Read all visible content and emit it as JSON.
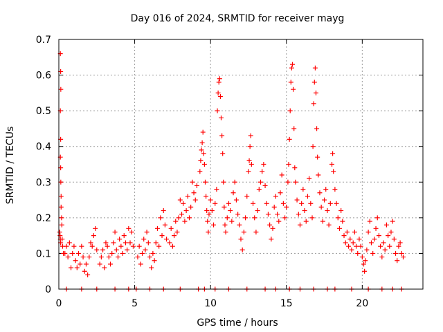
{
  "chart_data": {
    "type": "scatter",
    "title": "Day 016 of 2024, SRMTID for receiver mayg",
    "xlabel": "GPS time / hours",
    "ylabel": "SRMTID / TECUs",
    "xlim": [
      0,
      24
    ],
    "ylim": [
      0,
      0.7
    ],
    "xticks": [
      0,
      5,
      10,
      15,
      20
    ],
    "yticks": [
      0,
      0.1,
      0.2,
      0.3,
      0.4,
      0.5,
      0.6,
      0.7
    ],
    "xtick_labels": [
      "0",
      "5",
      "10",
      "15",
      "20"
    ],
    "ytick_labels": [
      "0",
      "0.1",
      "0.2",
      "0.3",
      "0.4",
      "0.5",
      "0.6",
      "0.7"
    ],
    "grid": true,
    "marker": "+",
    "color": "#ff0000",
    "series": [
      {
        "name": "SRMTID",
        "points": [
          [
            0.05,
            0.16
          ],
          [
            0.08,
            0.15
          ],
          [
            0.1,
            0.14
          ],
          [
            0.12,
            0.13
          ],
          [
            0.1,
            0.66
          ],
          [
            0.12,
            0.61
          ],
          [
            0.13,
            0.56
          ],
          [
            0.1,
            0.5
          ],
          [
            0.12,
            0.42
          ],
          [
            0.1,
            0.37
          ],
          [
            0.12,
            0.34
          ],
          [
            0.13,
            0.3
          ],
          [
            0.15,
            0.26
          ],
          [
            0.15,
            0.23
          ],
          [
            0.18,
            0.2
          ],
          [
            0.2,
            0.18
          ],
          [
            0.22,
            0.14
          ],
          [
            0.25,
            0.12
          ],
          [
            0.3,
            0.1
          ],
          [
            0.4,
            0.1
          ],
          [
            0.5,
            0.12
          ],
          [
            0.6,
            0.09
          ],
          [
            0.7,
            0.13
          ],
          [
            0.8,
            0.06
          ],
          [
            0.9,
            0.1
          ],
          [
            1.0,
            0.12
          ],
          [
            1.1,
            0.08
          ],
          [
            1.2,
            0.06
          ],
          [
            1.3,
            0.1
          ],
          [
            1.4,
            0.07
          ],
          [
            1.5,
            0.12
          ],
          [
            1.6,
            0.09
          ],
          [
            1.7,
            0.05
          ],
          [
            1.8,
            0.07
          ],
          [
            1.9,
            0.04
          ],
          [
            2.0,
            0.09
          ],
          [
            2.1,
            0.13
          ],
          [
            2.2,
            0.12
          ],
          [
            2.3,
            0.15
          ],
          [
            2.4,
            0.17
          ],
          [
            2.5,
            0.11
          ],
          [
            2.7,
            0.07
          ],
          [
            2.8,
            0.09
          ],
          [
            2.9,
            0.11
          ],
          [
            3.0,
            0.06
          ],
          [
            3.1,
            0.13
          ],
          [
            3.2,
            0.12
          ],
          [
            3.3,
            0.09
          ],
          [
            3.4,
            0.07
          ],
          [
            3.5,
            0.1
          ],
          [
            3.6,
            0.13
          ],
          [
            3.7,
            0.16
          ],
          [
            3.8,
            0.11
          ],
          [
            3.9,
            0.09
          ],
          [
            4.0,
            0.14
          ],
          [
            4.1,
            0.12
          ],
          [
            4.2,
            0.1
          ],
          [
            4.3,
            0.15
          ],
          [
            4.4,
            0.13
          ],
          [
            4.5,
            0.11
          ],
          [
            4.6,
            0.17
          ],
          [
            4.7,
            0.13
          ],
          [
            4.8,
            0.16
          ],
          [
            4.9,
            0.12
          ],
          [
            5.2,
            0.09
          ],
          [
            5.3,
            0.12
          ],
          [
            5.4,
            0.07
          ],
          [
            5.5,
            0.1
          ],
          [
            5.6,
            0.14
          ],
          [
            5.7,
            0.11
          ],
          [
            5.8,
            0.16
          ],
          [
            5.9,
            0.13
          ],
          [
            6.0,
            0.09
          ],
          [
            6.1,
            0.06
          ],
          [
            6.2,
            0.1
          ],
          [
            6.3,
            0.08
          ],
          [
            6.4,
            0.13
          ],
          [
            6.5,
            0.17
          ],
          [
            6.6,
            0.12
          ],
          [
            6.7,
            0.2
          ],
          [
            6.8,
            0.15
          ],
          [
            6.9,
            0.22
          ],
          [
            7.0,
            0.18
          ],
          [
            7.1,
            0.14
          ],
          [
            7.3,
            0.13
          ],
          [
            7.4,
            0.17
          ],
          [
            7.5,
            0.12
          ],
          [
            7.6,
            0.15
          ],
          [
            7.7,
            0.19
          ],
          [
            7.8,
            0.16
          ],
          [
            7.9,
            0.2
          ],
          [
            8.0,
            0.25
          ],
          [
            8.1,
            0.21
          ],
          [
            8.2,
            0.24
          ],
          [
            8.3,
            0.19
          ],
          [
            8.4,
            0.22
          ],
          [
            8.5,
            0.26
          ],
          [
            8.6,
            0.2
          ],
          [
            8.7,
            0.23
          ],
          [
            8.8,
            0.3
          ],
          [
            8.9,
            0.27
          ],
          [
            9.0,
            0.25
          ],
          [
            9.1,
            0.29
          ],
          [
            9.3,
            0.33
          ],
          [
            9.35,
            0.36
          ],
          [
            9.4,
            0.39
          ],
          [
            9.45,
            0.41
          ],
          [
            9.5,
            0.44
          ],
          [
            9.55,
            0.38
          ],
          [
            9.6,
            0.35
          ],
          [
            9.65,
            0.3
          ],
          [
            9.7,
            0.26
          ],
          [
            9.75,
            0.22
          ],
          [
            9.8,
            0.19
          ],
          [
            9.85,
            0.16
          ],
          [
            9.9,
            0.21
          ],
          [
            10.0,
            0.25
          ],
          [
            10.1,
            0.22
          ],
          [
            10.2,
            0.18
          ],
          [
            10.3,
            0.24
          ],
          [
            10.4,
            0.28
          ],
          [
            10.45,
            0.5
          ],
          [
            10.5,
            0.55
          ],
          [
            10.55,
            0.58
          ],
          [
            10.6,
            0.59
          ],
          [
            10.65,
            0.54
          ],
          [
            10.7,
            0.48
          ],
          [
            10.75,
            0.43
          ],
          [
            10.8,
            0.38
          ],
          [
            10.85,
            0.3
          ],
          [
            10.9,
            0.23
          ],
          [
            10.95,
            0.18
          ],
          [
            11.0,
            0.16
          ],
          [
            11.1,
            0.2
          ],
          [
            11.2,
            0.24
          ],
          [
            11.3,
            0.22
          ],
          [
            11.4,
            0.19
          ],
          [
            11.5,
            0.27
          ],
          [
            11.6,
            0.3
          ],
          [
            11.7,
            0.25
          ],
          [
            11.8,
            0.21
          ],
          [
            11.9,
            0.18
          ],
          [
            12.0,
            0.14
          ],
          [
            12.1,
            0.11
          ],
          [
            12.2,
            0.16
          ],
          [
            12.3,
            0.2
          ],
          [
            12.4,
            0.26
          ],
          [
            12.5,
            0.33
          ],
          [
            12.55,
            0.36
          ],
          [
            12.6,
            0.4
          ],
          [
            12.65,
            0.43
          ],
          [
            12.7,
            0.35
          ],
          [
            12.8,
            0.24
          ],
          [
            12.9,
            0.2
          ],
          [
            13.0,
            0.16
          ],
          [
            13.1,
            0.22
          ],
          [
            13.2,
            0.28
          ],
          [
            13.3,
            0.3
          ],
          [
            13.4,
            0.33
          ],
          [
            13.5,
            0.35
          ],
          [
            13.6,
            0.29
          ],
          [
            13.7,
            0.24
          ],
          [
            13.8,
            0.21
          ],
          [
            13.9,
            0.18
          ],
          [
            14.0,
            0.14
          ],
          [
            14.1,
            0.17
          ],
          [
            14.2,
            0.23
          ],
          [
            14.3,
            0.26
          ],
          [
            14.4,
            0.21
          ],
          [
            14.5,
            0.19
          ],
          [
            14.6,
            0.27
          ],
          [
            14.7,
            0.32
          ],
          [
            14.8,
            0.24
          ],
          [
            14.9,
            0.2
          ],
          [
            15.0,
            0.23
          ],
          [
            15.1,
            0.3
          ],
          [
            15.15,
            0.35
          ],
          [
            15.2,
            0.42
          ],
          [
            15.25,
            0.5
          ],
          [
            15.3,
            0.58
          ],
          [
            15.35,
            0.62
          ],
          [
            15.4,
            0.63
          ],
          [
            15.45,
            0.56
          ],
          [
            15.5,
            0.45
          ],
          [
            15.55,
            0.34
          ],
          [
            15.6,
            0.3
          ],
          [
            15.7,
            0.25
          ],
          [
            15.8,
            0.21
          ],
          [
            15.9,
            0.18
          ],
          [
            16.0,
            0.24
          ],
          [
            16.1,
            0.28
          ],
          [
            16.2,
            0.22
          ],
          [
            16.3,
            0.19
          ],
          [
            16.4,
            0.26
          ],
          [
            16.5,
            0.31
          ],
          [
            16.6,
            0.24
          ],
          [
            16.7,
            0.2
          ],
          [
            16.75,
            0.4
          ],
          [
            16.8,
            0.52
          ],
          [
            16.85,
            0.58
          ],
          [
            16.9,
            0.62
          ],
          [
            16.95,
            0.55
          ],
          [
            17.0,
            0.45
          ],
          [
            17.05,
            0.37
          ],
          [
            17.1,
            0.32
          ],
          [
            17.2,
            0.27
          ],
          [
            17.3,
            0.23
          ],
          [
            17.4,
            0.19
          ],
          [
            17.5,
            0.25
          ],
          [
            17.6,
            0.28
          ],
          [
            17.7,
            0.22
          ],
          [
            17.8,
            0.18
          ],
          [
            17.9,
            0.24
          ],
          [
            18.0,
            0.35
          ],
          [
            18.05,
            0.38
          ],
          [
            18.1,
            0.33
          ],
          [
            18.2,
            0.28
          ],
          [
            18.3,
            0.24
          ],
          [
            18.4,
            0.2
          ],
          [
            18.5,
            0.17
          ],
          [
            18.6,
            0.22
          ],
          [
            18.7,
            0.19
          ],
          [
            18.8,
            0.15
          ],
          [
            18.9,
            0.13
          ],
          [
            19.0,
            0.16
          ],
          [
            19.1,
            0.12
          ],
          [
            19.2,
            0.14
          ],
          [
            19.3,
            0.11
          ],
          [
            19.4,
            0.13
          ],
          [
            19.5,
            0.16
          ],
          [
            19.6,
            0.12
          ],
          [
            19.7,
            0.1
          ],
          [
            19.8,
            0.14
          ],
          [
            19.9,
            0.12
          ],
          [
            20.0,
            0.09
          ],
          [
            20.1,
            0.07
          ],
          [
            20.15,
            0.05
          ],
          [
            20.2,
            0.08
          ],
          [
            20.3,
            0.11
          ],
          [
            20.4,
            0.16
          ],
          [
            20.5,
            0.19
          ],
          [
            20.6,
            0.13
          ],
          [
            20.7,
            0.1
          ],
          [
            20.8,
            0.14
          ],
          [
            20.9,
            0.17
          ],
          [
            21.0,
            0.2
          ],
          [
            21.1,
            0.15
          ],
          [
            21.2,
            0.12
          ],
          [
            21.3,
            0.09
          ],
          [
            21.4,
            0.13
          ],
          [
            21.5,
            0.11
          ],
          [
            21.6,
            0.18
          ],
          [
            21.7,
            0.15
          ],
          [
            21.8,
            0.12
          ],
          [
            21.9,
            0.16
          ],
          [
            22.0,
            0.19
          ],
          [
            22.1,
            0.14
          ],
          [
            22.2,
            0.1
          ],
          [
            22.3,
            0.08
          ],
          [
            22.4,
            0.12
          ],
          [
            22.5,
            0.13
          ],
          [
            22.6,
            0.1
          ],
          [
            22.7,
            0.09
          ],
          [
            0.5,
            0.0
          ],
          [
            1.5,
            0.0
          ],
          [
            2.5,
            0.0
          ],
          [
            3.7,
            0.0
          ],
          [
            4.6,
            0.0
          ],
          [
            5.1,
            0.0
          ],
          [
            6.0,
            0.0
          ],
          [
            6.9,
            0.0
          ],
          [
            8.0,
            0.0
          ],
          [
            9.2,
            0.0
          ],
          [
            9.6,
            0.0
          ],
          [
            10.3,
            0.0
          ],
          [
            11.2,
            0.0
          ],
          [
            12.4,
            0.0
          ],
          [
            13.6,
            0.0
          ],
          [
            14.3,
            0.0
          ],
          [
            15.2,
            0.0
          ],
          [
            15.9,
            0.0
          ],
          [
            16.8,
            0.0
          ],
          [
            17.7,
            0.0
          ],
          [
            18.2,
            0.0
          ],
          [
            19.3,
            0.0
          ],
          [
            20.4,
            0.0
          ],
          [
            21.3,
            0.0
          ],
          [
            22.0,
            0.0
          ],
          [
            22.6,
            0.0
          ]
        ]
      }
    ]
  }
}
